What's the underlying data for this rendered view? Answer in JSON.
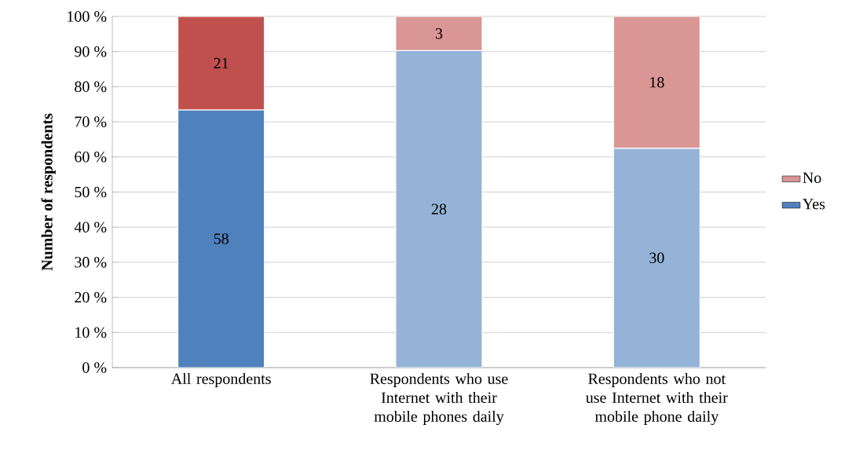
{
  "chart_data": {
    "type": "bar",
    "stacked": true,
    "ylabel": "Number of respondents",
    "categories": [
      "All respondents",
      "Respondents who use Internet with their mobile phones daily",
      "Respondents who not use Internet with their mobile phone daily"
    ],
    "series": [
      {
        "name": "Yes",
        "color": "#4f81bd",
        "colors": [
          "#4f81bd",
          "#95b3d7",
          "#95b3d7"
        ],
        "values": [
          73.4,
          90.3,
          62.5
        ]
      },
      {
        "name": "No",
        "color": "#d99694",
        "colors": [
          "#c0504d",
          "#d99694",
          "#d99694"
        ],
        "values": [
          26.6,
          9.7,
          37.5
        ]
      }
    ],
    "annotations": [
      "58",
      "28",
      "30",
      "21",
      "3",
      "18"
    ],
    "ylim": [
      0,
      100
    ],
    "yticks": [
      {
        "value": 0,
        "label": "0 %"
      },
      {
        "value": 10,
        "label": "10 %"
      },
      {
        "value": 20,
        "label": "20 %"
      },
      {
        "value": 30,
        "label": "30 %"
      },
      {
        "value": 40,
        "label": "40 %"
      },
      {
        "value": 50,
        "label": "50 %"
      },
      {
        "value": 60,
        "label": "60 %"
      },
      {
        "value": 70,
        "label": "70 %"
      },
      {
        "value": 80,
        "label": "80 %"
      },
      {
        "value": 90,
        "label": "90 %"
      },
      {
        "value": 100,
        "label": "100 %"
      }
    ],
    "grid": "y",
    "legend": "right"
  }
}
